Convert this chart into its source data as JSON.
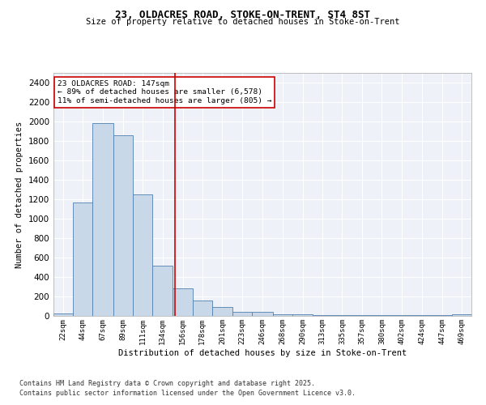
{
  "title1": "23, OLDACRES ROAD, STOKE-ON-TRENT, ST4 8ST",
  "title2": "Size of property relative to detached houses in Stoke-on-Trent",
  "xlabel": "Distribution of detached houses by size in Stoke-on-Trent",
  "ylabel": "Number of detached properties",
  "footnote1": "Contains HM Land Registry data © Crown copyright and database right 2025.",
  "footnote2": "Contains public sector information licensed under the Open Government Licence v3.0.",
  "annotation_line1": "23 OLDACRES ROAD: 147sqm",
  "annotation_line2": "← 89% of detached houses are smaller (6,578)",
  "annotation_line3": "11% of semi-detached houses are larger (805) →",
  "bar_color": "#c8d8e8",
  "bar_edge_color": "#5080b0",
  "redline_color": "#cc0000",
  "redline_x": 147,
  "categories": [
    "22sqm",
    "44sqm",
    "67sqm",
    "89sqm",
    "111sqm",
    "134sqm",
    "156sqm",
    "178sqm",
    "201sqm",
    "223sqm",
    "246sqm",
    "268sqm",
    "290sqm",
    "313sqm",
    "335sqm",
    "357sqm",
    "380sqm",
    "402sqm",
    "424sqm",
    "447sqm",
    "469sqm"
  ],
  "bin_edges": [
    11,
    33,
    55,
    78,
    100,
    122,
    145,
    167,
    189,
    212,
    234,
    257,
    279,
    302,
    324,
    346,
    368,
    391,
    413,
    436,
    458,
    480
  ],
  "values": [
    25,
    1170,
    1980,
    1860,
    1250,
    520,
    280,
    155,
    90,
    45,
    45,
    20,
    20,
    5,
    5,
    5,
    5,
    5,
    5,
    5,
    20
  ],
  "ylim": [
    0,
    2500
  ],
  "yticks": [
    0,
    200,
    400,
    600,
    800,
    1000,
    1200,
    1400,
    1600,
    1800,
    2000,
    2200,
    2400
  ],
  "background_color": "#eef2f8",
  "grid_color": "#ffffff",
  "fig_bg": "#ffffff"
}
